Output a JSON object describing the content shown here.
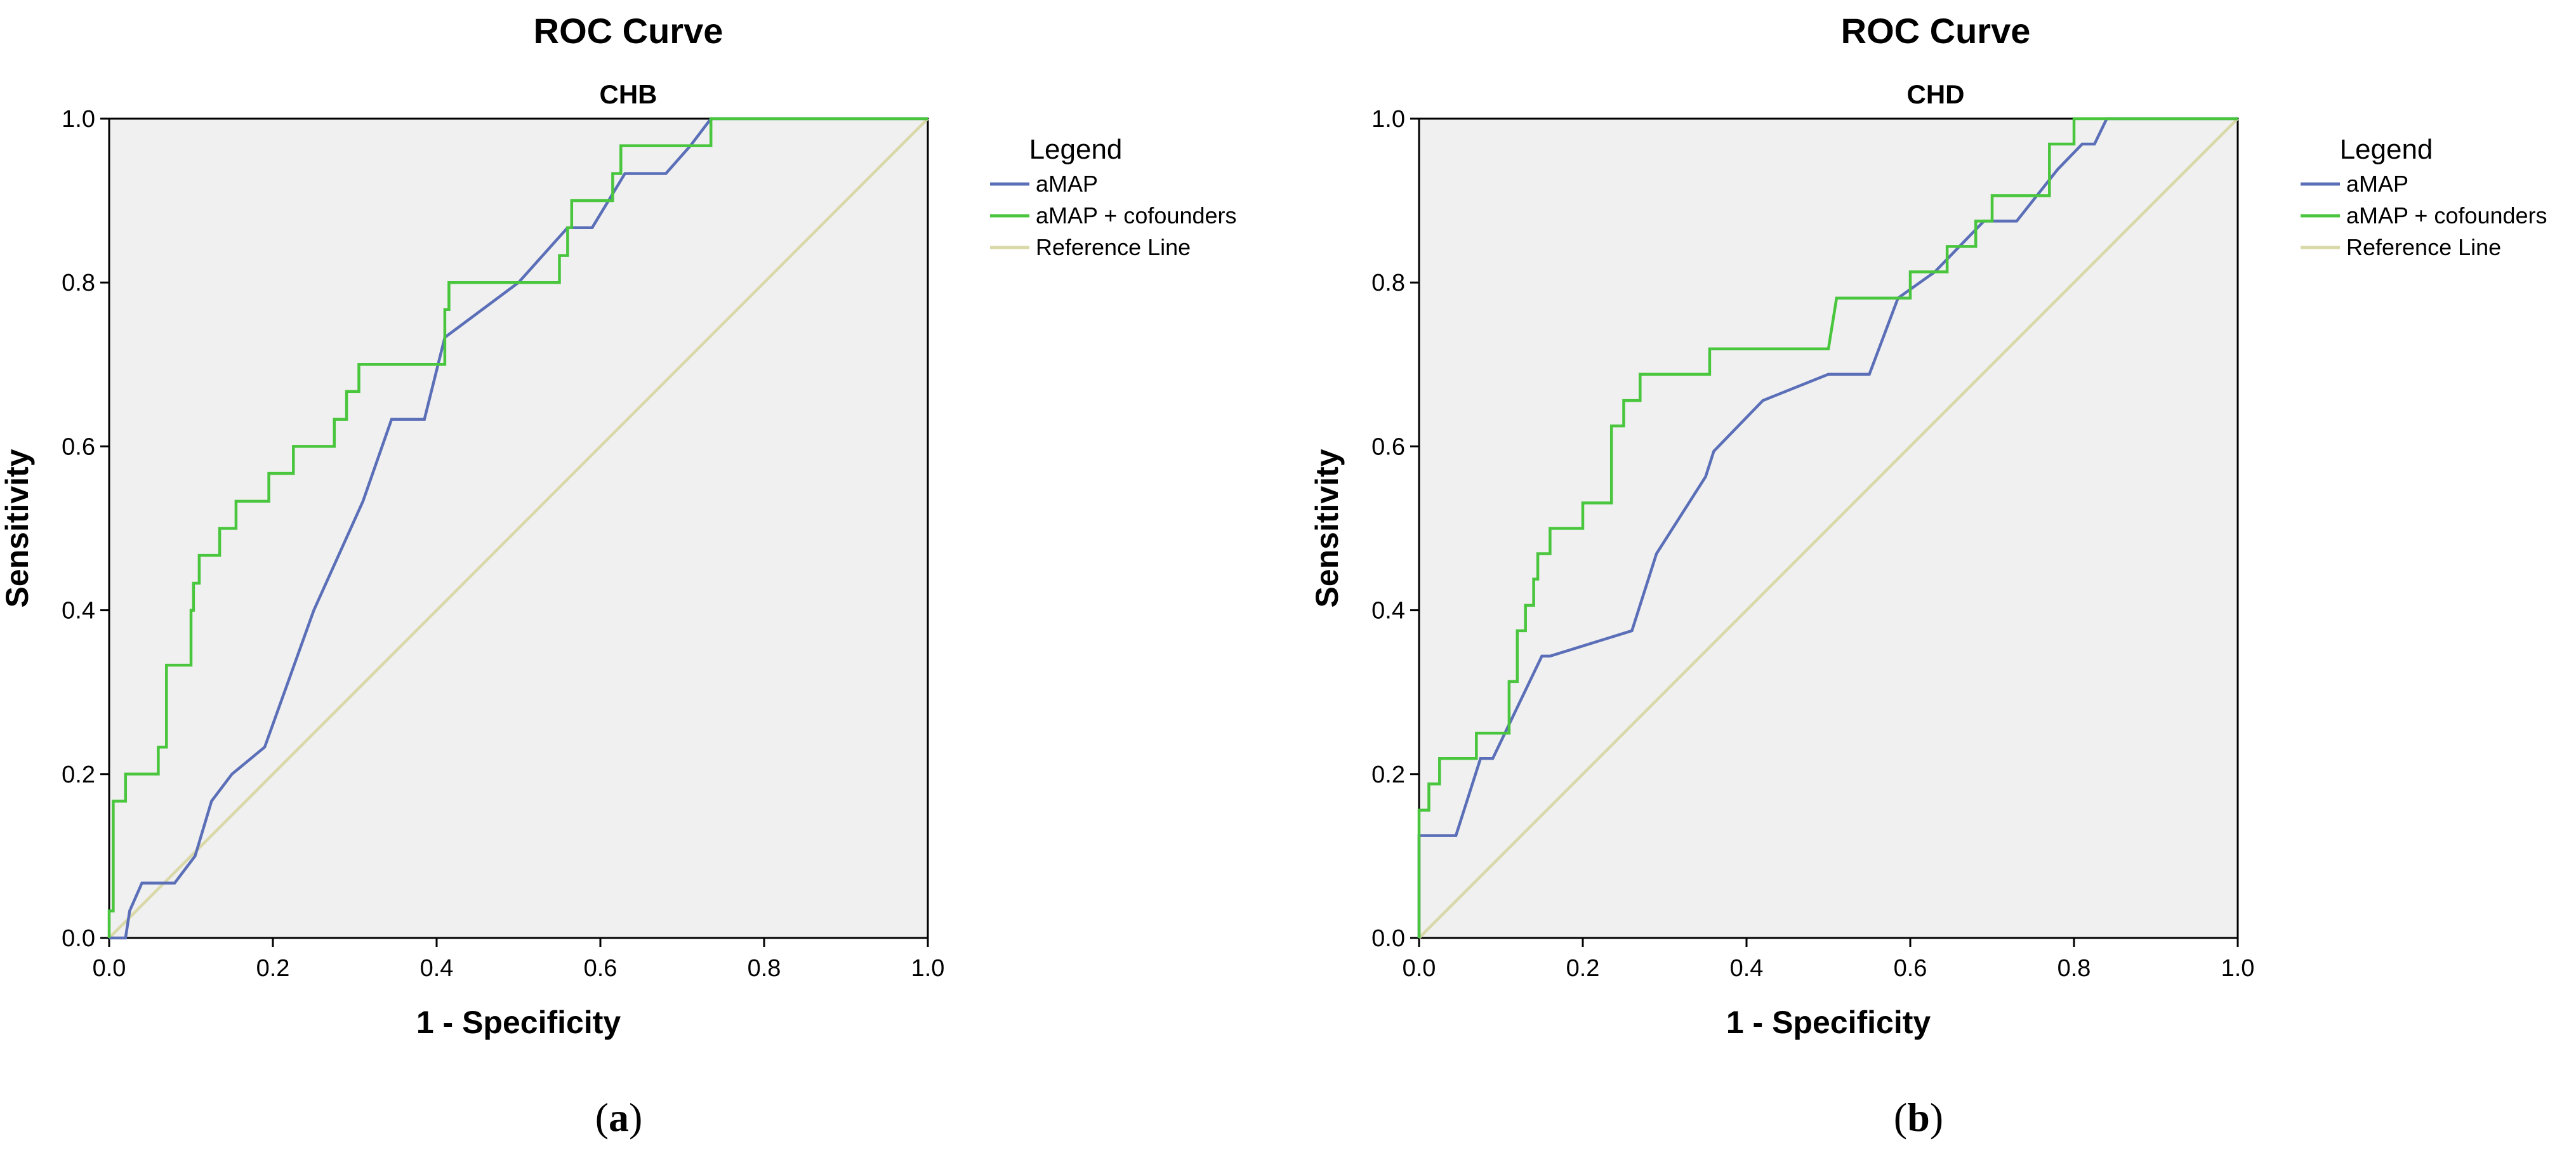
{
  "colors": {
    "plot_background": "#f0f0f0",
    "axis": "#000000",
    "amap": "#5b6fb8",
    "amap_cofounders": "#49c63d",
    "reference": "#d8d8a8"
  },
  "chart_data": [
    {
      "type": "line",
      "panel_label": "a",
      "title": "ROC Curve",
      "subtitle": "CHB",
      "xlabel": "1 - Specificity",
      "ylabel": "Sensitivity",
      "xlim": [
        0,
        1
      ],
      "ylim": [
        0,
        1
      ],
      "xticks": [
        "0.0",
        "0.2",
        "0.4",
        "0.6",
        "0.8",
        "1.0"
      ],
      "yticks": [
        "0.0",
        "0.2",
        "0.4",
        "0.6",
        "0.8",
        "1.0"
      ],
      "legend": {
        "title": "Legend",
        "position": "right",
        "entries": [
          "aMAP",
          "aMAP + cofounders",
          "Reference Line"
        ]
      },
      "series": [
        {
          "name": "aMAP",
          "color_key": "amap",
          "points": [
            [
              0.0,
              0.0
            ],
            [
              0.02,
              0.0
            ],
            [
              0.025,
              0.033
            ],
            [
              0.04,
              0.067
            ],
            [
              0.08,
              0.067
            ],
            [
              0.105,
              0.1
            ],
            [
              0.125,
              0.167
            ],
            [
              0.15,
              0.2
            ],
            [
              0.19,
              0.233
            ],
            [
              0.25,
              0.4
            ],
            [
              0.31,
              0.533
            ],
            [
              0.345,
              0.633
            ],
            [
              0.385,
              0.633
            ],
            [
              0.41,
              0.733
            ],
            [
              0.5,
              0.8
            ],
            [
              0.56,
              0.867
            ],
            [
              0.59,
              0.867
            ],
            [
              0.63,
              0.933
            ],
            [
              0.68,
              0.933
            ],
            [
              0.71,
              0.967
            ],
            [
              0.735,
              1.0
            ],
            [
              1.0,
              1.0
            ]
          ]
        },
        {
          "name": "aMAP + cofounders",
          "color_key": "amap_cofounders",
          "points": [
            [
              0.0,
              0.0
            ],
            [
              0.0,
              0.033
            ],
            [
              0.005,
              0.033
            ],
            [
              0.005,
              0.167
            ],
            [
              0.02,
              0.167
            ],
            [
              0.02,
              0.2
            ],
            [
              0.06,
              0.2
            ],
            [
              0.06,
              0.233
            ],
            [
              0.07,
              0.233
            ],
            [
              0.07,
              0.333
            ],
            [
              0.1,
              0.333
            ],
            [
              0.1,
              0.4
            ],
            [
              0.103,
              0.4
            ],
            [
              0.103,
              0.433
            ],
            [
              0.11,
              0.433
            ],
            [
              0.11,
              0.467
            ],
            [
              0.135,
              0.467
            ],
            [
              0.135,
              0.5
            ],
            [
              0.155,
              0.5
            ],
            [
              0.155,
              0.533
            ],
            [
              0.195,
              0.533
            ],
            [
              0.195,
              0.567
            ],
            [
              0.225,
              0.567
            ],
            [
              0.225,
              0.6
            ],
            [
              0.275,
              0.6
            ],
            [
              0.275,
              0.633
            ],
            [
              0.29,
              0.633
            ],
            [
              0.29,
              0.667
            ],
            [
              0.305,
              0.667
            ],
            [
              0.305,
              0.7
            ],
            [
              0.41,
              0.7
            ],
            [
              0.41,
              0.767
            ],
            [
              0.415,
              0.767
            ],
            [
              0.415,
              0.8
            ],
            [
              0.55,
              0.8
            ],
            [
              0.55,
              0.833
            ],
            [
              0.56,
              0.833
            ],
            [
              0.56,
              0.867
            ],
            [
              0.565,
              0.867
            ],
            [
              0.565,
              0.9
            ],
            [
              0.615,
              0.9
            ],
            [
              0.615,
              0.933
            ],
            [
              0.625,
              0.933
            ],
            [
              0.625,
              0.967
            ],
            [
              0.735,
              0.967
            ],
            [
              0.735,
              1.0
            ],
            [
              1.0,
              1.0
            ]
          ]
        },
        {
          "name": "Reference Line",
          "color_key": "reference",
          "points": [
            [
              0.0,
              0.0
            ],
            [
              1.0,
              1.0
            ]
          ]
        }
      ]
    },
    {
      "type": "line",
      "panel_label": "b",
      "title": "ROC Curve",
      "subtitle": "CHD",
      "xlabel": "1 - Specificity",
      "ylabel": "Sensitivity",
      "xlim": [
        0,
        1
      ],
      "ylim": [
        0,
        1
      ],
      "xticks": [
        "0.0",
        "0.2",
        "0.4",
        "0.6",
        "0.8",
        "1.0"
      ],
      "yticks": [
        "0.0",
        "0.2",
        "0.4",
        "0.6",
        "0.8",
        "1.0"
      ],
      "legend": {
        "title": "Legend",
        "position": "right",
        "entries": [
          "aMAP",
          "aMAP + cofounders",
          "Reference Line"
        ]
      },
      "series": [
        {
          "name": "aMAP",
          "color_key": "amap",
          "points": [
            [
              0.0,
              0.0
            ],
            [
              0.0,
              0.125
            ],
            [
              0.045,
              0.125
            ],
            [
              0.075,
              0.219
            ],
            [
              0.09,
              0.219
            ],
            [
              0.15,
              0.344
            ],
            [
              0.16,
              0.344
            ],
            [
              0.26,
              0.375
            ],
            [
              0.29,
              0.469
            ],
            [
              0.35,
              0.563
            ],
            [
              0.36,
              0.594
            ],
            [
              0.42,
              0.656
            ],
            [
              0.5,
              0.688
            ],
            [
              0.55,
              0.688
            ],
            [
              0.585,
              0.781
            ],
            [
              0.63,
              0.813
            ],
            [
              0.69,
              0.875
            ],
            [
              0.73,
              0.875
            ],
            [
              0.78,
              0.938
            ],
            [
              0.81,
              0.969
            ],
            [
              0.825,
              0.969
            ],
            [
              0.84,
              1.0
            ],
            [
              1.0,
              1.0
            ]
          ]
        },
        {
          "name": "aMAP + cofounders",
          "color_key": "amap_cofounders",
          "points": [
            [
              0.0,
              0.0
            ],
            [
              0.0,
              0.156
            ],
            [
              0.012,
              0.156
            ],
            [
              0.012,
              0.188
            ],
            [
              0.025,
              0.188
            ],
            [
              0.025,
              0.219
            ],
            [
              0.07,
              0.219
            ],
            [
              0.07,
              0.25
            ],
            [
              0.11,
              0.25
            ],
            [
              0.11,
              0.313
            ],
            [
              0.12,
              0.313
            ],
            [
              0.12,
              0.375
            ],
            [
              0.13,
              0.375
            ],
            [
              0.13,
              0.406
            ],
            [
              0.14,
              0.406
            ],
            [
              0.14,
              0.438
            ],
            [
              0.145,
              0.438
            ],
            [
              0.145,
              0.469
            ],
            [
              0.16,
              0.469
            ],
            [
              0.16,
              0.5
            ],
            [
              0.2,
              0.5
            ],
            [
              0.2,
              0.531
            ],
            [
              0.235,
              0.531
            ],
            [
              0.235,
              0.625
            ],
            [
              0.25,
              0.625
            ],
            [
              0.25,
              0.656
            ],
            [
              0.27,
              0.656
            ],
            [
              0.27,
              0.688
            ],
            [
              0.355,
              0.688
            ],
            [
              0.355,
              0.719
            ],
            [
              0.5,
              0.719
            ],
            [
              0.51,
              0.781
            ],
            [
              0.6,
              0.781
            ],
            [
              0.6,
              0.813
            ],
            [
              0.645,
              0.813
            ],
            [
              0.645,
              0.844
            ],
            [
              0.68,
              0.844
            ],
            [
              0.68,
              0.875
            ],
            [
              0.7,
              0.875
            ],
            [
              0.7,
              0.906
            ],
            [
              0.77,
              0.906
            ],
            [
              0.77,
              0.969
            ],
            [
              0.8,
              0.969
            ],
            [
              0.8,
              1.0
            ],
            [
              1.0,
              1.0
            ]
          ]
        },
        {
          "name": "Reference Line",
          "color_key": "reference",
          "points": [
            [
              0.0,
              0.0
            ],
            [
              1.0,
              1.0
            ]
          ]
        }
      ]
    }
  ]
}
